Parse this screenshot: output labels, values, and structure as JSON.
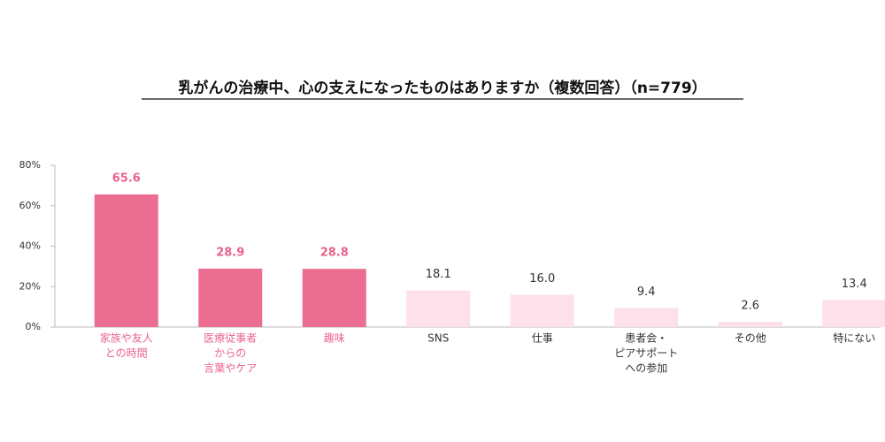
{
  "chart_data": {
    "type": "bar",
    "title": "乳がんの治療中、心の支えになったものはありますか（複数回答）（n=779）",
    "categories": [
      [
        "家族や友人",
        "との時間"
      ],
      [
        "医療従事者",
        "からの",
        "言葉やケア"
      ],
      [
        "趣味"
      ],
      [
        "SNS"
      ],
      [
        "仕事"
      ],
      [
        "患者会・",
        "ピアサポート",
        "への参加"
      ],
      [
        "その他"
      ],
      [
        "特にない"
      ]
    ],
    "values": [
      65.6,
      28.9,
      28.8,
      18.1,
      16.0,
      9.4,
      2.6,
      13.4
    ],
    "value_labels": [
      "65.6",
      "28.9",
      "28.8",
      "18.1",
      "16.0",
      "9.4",
      "2.6",
      "13.4"
    ],
    "colors": [
      "#eb6d92",
      "#eb6d92",
      "#eb6d92",
      "#fde0e9",
      "#fde0e9",
      "#fde0e9",
      "#fde0e9",
      "#fde0e9"
    ],
    "label_colors": [
      "#e8638b",
      "#e8638b",
      "#e8638b",
      "#333333",
      "#333333",
      "#333333",
      "#333333",
      "#333333"
    ],
    "ylim": [
      0,
      80
    ],
    "yticks": [
      {
        "value": 0,
        "label": "0%"
      },
      {
        "value": 20,
        "label": "20%"
      },
      {
        "value": 40,
        "label": "40%"
      },
      {
        "value": 60,
        "label": "60%"
      },
      {
        "value": 80,
        "label": "80%"
      }
    ],
    "grid": false
  }
}
